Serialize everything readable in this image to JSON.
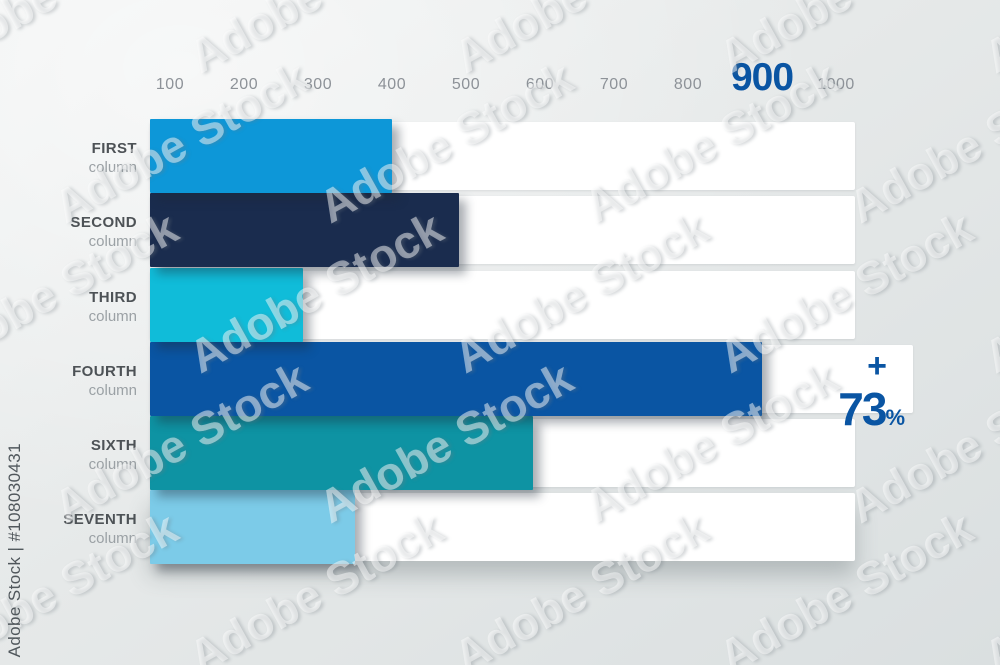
{
  "watermark": {
    "text": "Adobe Stock",
    "credit": "Adobe Stock | #108030431"
  },
  "chart_data": {
    "type": "bar",
    "orientation": "horizontal",
    "title": "",
    "xlabel": "",
    "ylabel": "",
    "axis": {
      "min": 100,
      "max": 1000,
      "step": 100,
      "ticks": [
        "100",
        "200",
        "300",
        "400",
        "500",
        "600",
        "700",
        "800",
        "900",
        "1000"
      ],
      "highlighted_tick": "900",
      "highlight_color": "#0a55a3",
      "tick_color": "#8d9298",
      "grid": false
    },
    "categories": [
      "FIRST",
      "SECOND",
      "THIRD",
      "FOURTH",
      "SIXTH",
      "SEVENTH"
    ],
    "sublabel": "column",
    "values": [
      400,
      490,
      280,
      900,
      590,
      350
    ],
    "bar_colors": [
      "#0d97d8",
      "#1a2c4e",
      "#10bcd9",
      "#0a55a3",
      "#0e93a3",
      "#7ccbe8"
    ],
    "track_color": "#ffffff",
    "legend": null,
    "annotation": {
      "target_category": "FOURTH",
      "plus": "+",
      "value": "73",
      "unit": "%",
      "color": "#0a55a3"
    }
  }
}
